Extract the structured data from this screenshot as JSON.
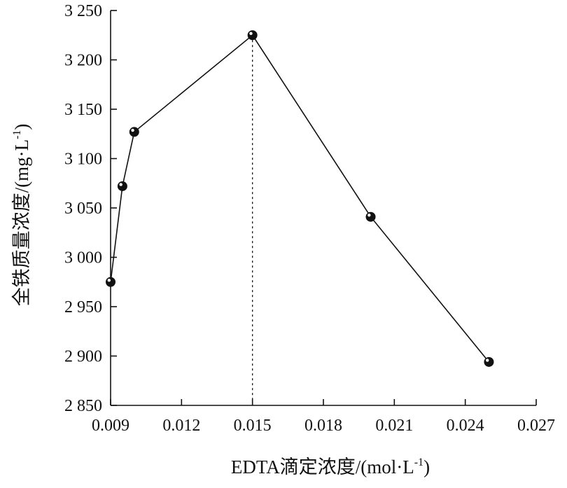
{
  "chart_data": {
    "type": "line",
    "xlabel": "EDTA滴定浓度/(mol·L",
    "xlabel_sup": "-1",
    "xlabel_end": ")",
    "ylabel": "全铁质量浓度/(mg·L",
    "ylabel_sup": "-1",
    "ylabel_end": ")",
    "xlim": [
      0.009,
      0.027
    ],
    "ylim": [
      2850,
      3250
    ],
    "x_ticks": [
      0.009,
      0.012,
      0.015,
      0.018,
      0.021,
      0.024,
      0.027
    ],
    "x_tick_labels": [
      "0.009",
      "0.012",
      "0.015",
      "0.018",
      "0.021",
      "0.024",
      "0.027"
    ],
    "y_ticks": [
      2850,
      2900,
      2950,
      3000,
      3050,
      3100,
      3150,
      3200,
      3250
    ],
    "y_tick_labels": [
      "2 850",
      "2 900",
      "2 950",
      "3 000",
      "3 050",
      "3 100",
      "3 150",
      "3 200",
      "3 250"
    ],
    "grid": false,
    "series": [
      {
        "x": [
          0.009,
          0.0095,
          0.01,
          0.015,
          0.02,
          0.025
        ],
        "values": [
          2975,
          3072,
          3127,
          3225,
          3041,
          2894
        ]
      }
    ],
    "reference_line_x": 0.015
  }
}
